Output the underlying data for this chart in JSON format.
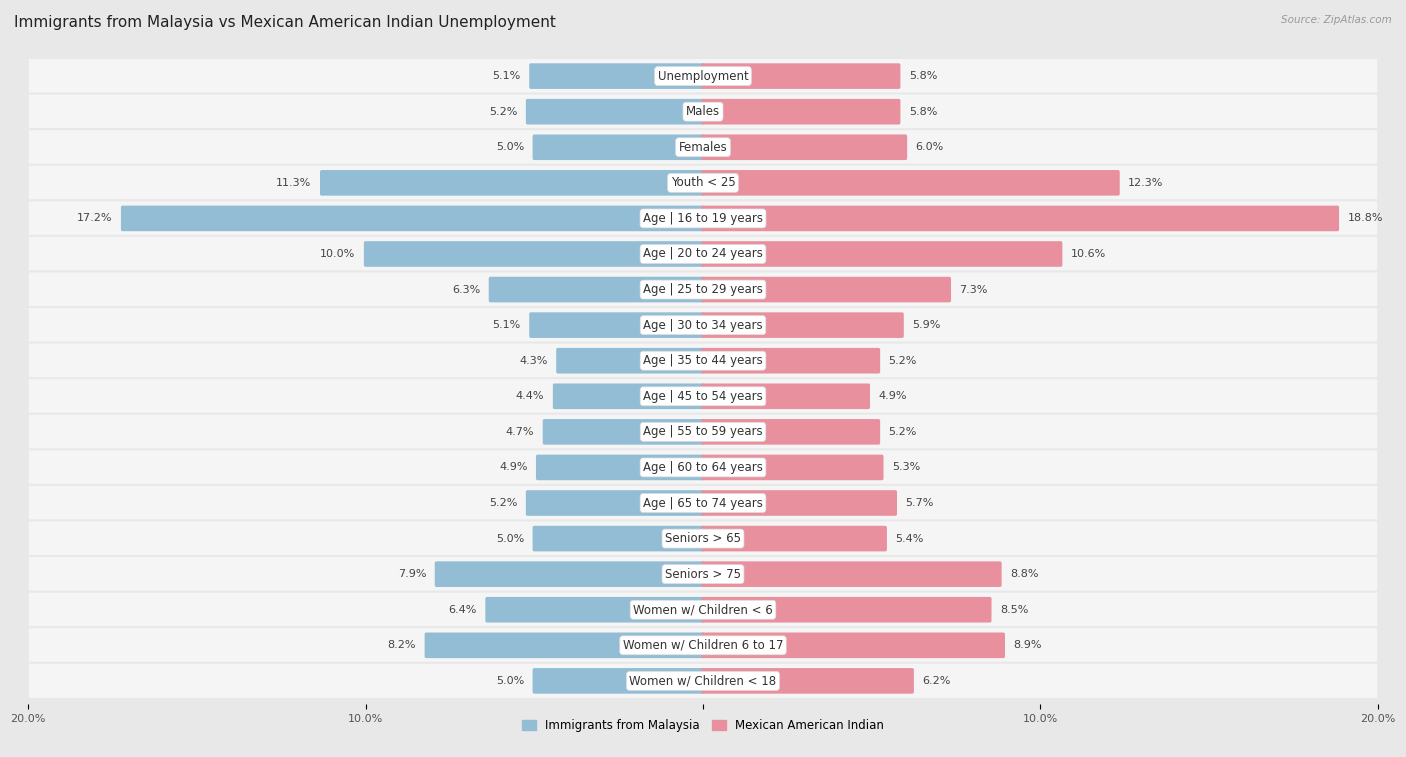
{
  "title": "Immigrants from Malaysia vs Mexican American Indian Unemployment",
  "source": "Source: ZipAtlas.com",
  "categories": [
    "Unemployment",
    "Males",
    "Females",
    "Youth < 25",
    "Age | 16 to 19 years",
    "Age | 20 to 24 years",
    "Age | 25 to 29 years",
    "Age | 30 to 34 years",
    "Age | 35 to 44 years",
    "Age | 45 to 54 years",
    "Age | 55 to 59 years",
    "Age | 60 to 64 years",
    "Age | 65 to 74 years",
    "Seniors > 65",
    "Seniors > 75",
    "Women w/ Children < 6",
    "Women w/ Children 6 to 17",
    "Women w/ Children < 18"
  ],
  "left_values": [
    5.1,
    5.2,
    5.0,
    11.3,
    17.2,
    10.0,
    6.3,
    5.1,
    4.3,
    4.4,
    4.7,
    4.9,
    5.2,
    5.0,
    7.9,
    6.4,
    8.2,
    5.0
  ],
  "right_values": [
    5.8,
    5.8,
    6.0,
    12.3,
    18.8,
    10.6,
    7.3,
    5.9,
    5.2,
    4.9,
    5.2,
    5.3,
    5.7,
    5.4,
    8.8,
    8.5,
    8.9,
    6.2
  ],
  "left_color": "#92bdd4",
  "right_color": "#e8909e",
  "left_label": "Immigrants from Malaysia",
  "right_label": "Mexican American Indian",
  "xlim": 20.0,
  "bg_color": "#e8e8e8",
  "row_color": "#f5f5f5",
  "label_bg_color": "#ffffff",
  "title_fontsize": 11,
  "label_fontsize": 8.5,
  "value_fontsize": 8.0
}
